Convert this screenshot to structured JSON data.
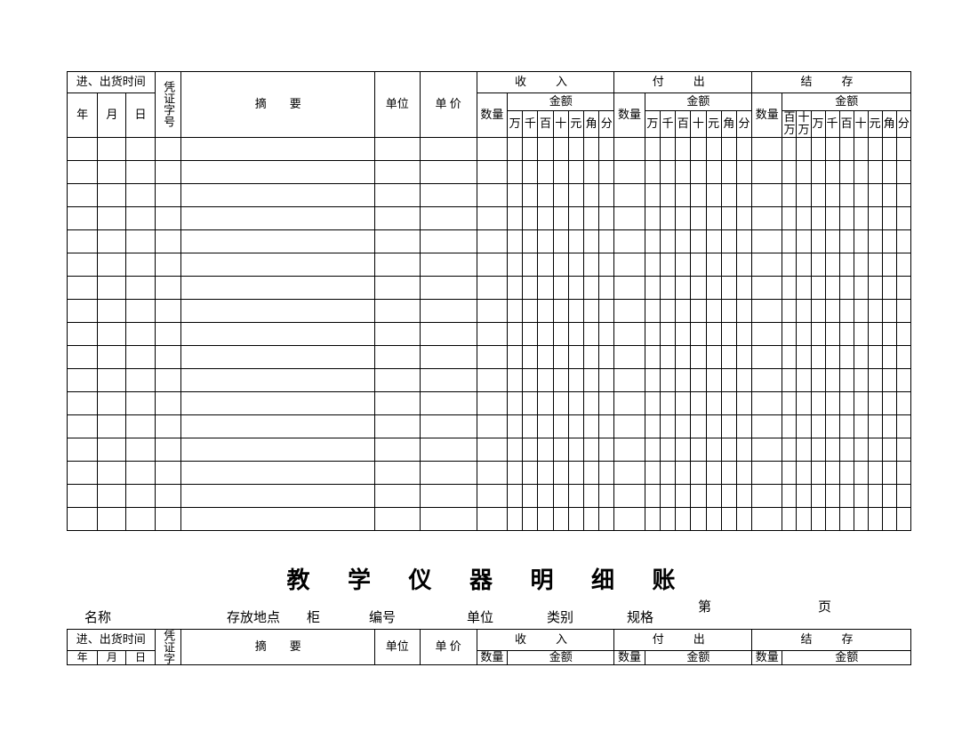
{
  "ledger": {
    "headers": {
      "time_group": "进、出货时间",
      "voucher": "凭证字号",
      "year": "年",
      "month": "月",
      "day": "日",
      "summary": "摘　　要",
      "unit": "单位",
      "unit_price": "单 价",
      "income": "收　入",
      "outgoing": "付　出",
      "balance": "结　存",
      "qty": "数量",
      "amount": "金额",
      "digits7": [
        "万",
        "千",
        "百",
        "十",
        "元",
        "角",
        "分"
      ],
      "digits9": [
        "百万",
        "十万",
        "万",
        "千",
        "百",
        "十",
        "元",
        "角",
        "分"
      ]
    },
    "data_row_count": 17,
    "col_widths": {
      "year": 30,
      "month": 28,
      "day": 28,
      "voucher": 26,
      "summary": 190,
      "unit": 44,
      "price": 56,
      "qty": 30,
      "digit": 15,
      "digit_bal": 14
    },
    "section2": {
      "title": "教 学 仪 器 明 细 账",
      "page_label": "第　　页",
      "meta": {
        "name": "名称",
        "location": "存放地点　　柜",
        "number": "编号",
        "unit": "单位",
        "category": "类别",
        "spec": "规格"
      }
    }
  },
  "style": {
    "background": "#ffffff",
    "border_color": "#000000",
    "text_color": "#000000",
    "font_family": "SimSun"
  }
}
